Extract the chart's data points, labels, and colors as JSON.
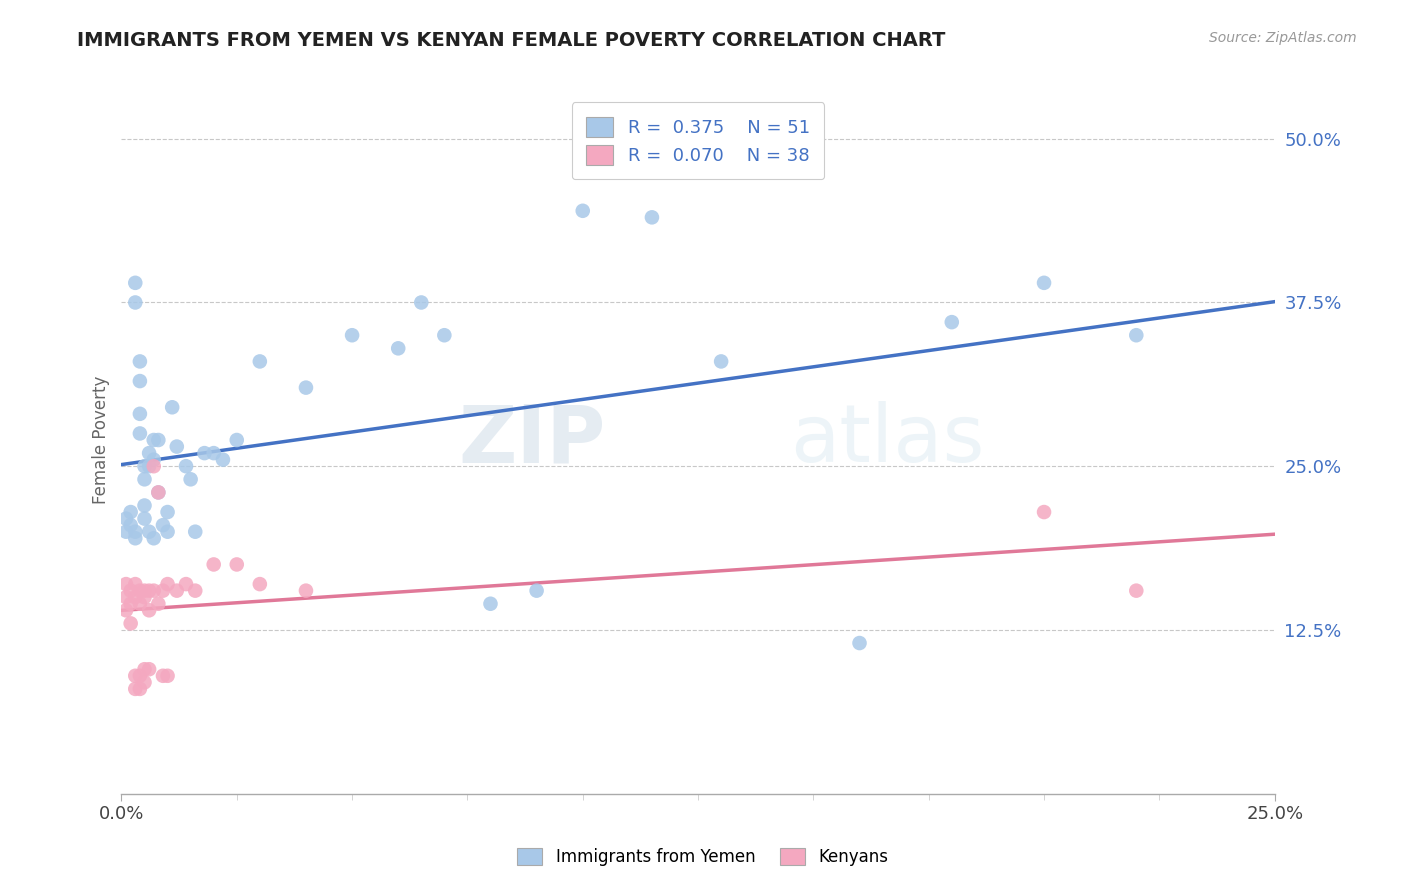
{
  "title": "IMMIGRANTS FROM YEMEN VS KENYAN FEMALE POVERTY CORRELATION CHART",
  "source": "Source: ZipAtlas.com",
  "ylabel": "Female Poverty",
  "xlim": [
    0.0,
    0.25
  ],
  "ylim": [
    0.0,
    0.54
  ],
  "ytick_positions": [
    0.125,
    0.25,
    0.375,
    0.5
  ],
  "ytick_labels": [
    "12.5%",
    "25.0%",
    "37.5%",
    "50.0%"
  ],
  "blue_color": "#a8c8e8",
  "pink_color": "#f4a8c0",
  "blue_line_color": "#4472c4",
  "pink_line_color": "#e07898",
  "watermark_zip": "ZIP",
  "watermark_atlas": "atlas",
  "blue_scatter_x": [
    0.001,
    0.001,
    0.002,
    0.002,
    0.003,
    0.003,
    0.003,
    0.003,
    0.004,
    0.004,
    0.004,
    0.004,
    0.005,
    0.005,
    0.005,
    0.005,
    0.006,
    0.006,
    0.006,
    0.007,
    0.007,
    0.007,
    0.008,
    0.008,
    0.009,
    0.01,
    0.01,
    0.011,
    0.012,
    0.014,
    0.015,
    0.016,
    0.018,
    0.02,
    0.022,
    0.025,
    0.03,
    0.04,
    0.05,
    0.06,
    0.065,
    0.07,
    0.08,
    0.09,
    0.1,
    0.115,
    0.13,
    0.16,
    0.18,
    0.2,
    0.22
  ],
  "blue_scatter_y": [
    0.21,
    0.2,
    0.215,
    0.205,
    0.195,
    0.2,
    0.39,
    0.375,
    0.33,
    0.315,
    0.275,
    0.29,
    0.25,
    0.24,
    0.22,
    0.21,
    0.26,
    0.25,
    0.2,
    0.27,
    0.255,
    0.195,
    0.23,
    0.27,
    0.205,
    0.215,
    0.2,
    0.295,
    0.265,
    0.25,
    0.24,
    0.2,
    0.26,
    0.26,
    0.255,
    0.27,
    0.33,
    0.31,
    0.35,
    0.34,
    0.375,
    0.35,
    0.145,
    0.155,
    0.445,
    0.44,
    0.33,
    0.115,
    0.36,
    0.39,
    0.35
  ],
  "pink_scatter_x": [
    0.001,
    0.001,
    0.001,
    0.002,
    0.002,
    0.002,
    0.003,
    0.003,
    0.003,
    0.003,
    0.004,
    0.004,
    0.004,
    0.004,
    0.005,
    0.005,
    0.005,
    0.005,
    0.006,
    0.006,
    0.006,
    0.007,
    0.007,
    0.008,
    0.008,
    0.009,
    0.009,
    0.01,
    0.01,
    0.012,
    0.014,
    0.016,
    0.02,
    0.025,
    0.03,
    0.04,
    0.2,
    0.22
  ],
  "pink_scatter_y": [
    0.16,
    0.15,
    0.14,
    0.155,
    0.145,
    0.13,
    0.16,
    0.15,
    0.09,
    0.08,
    0.155,
    0.145,
    0.09,
    0.08,
    0.155,
    0.15,
    0.095,
    0.085,
    0.155,
    0.14,
    0.095,
    0.25,
    0.155,
    0.23,
    0.145,
    0.155,
    0.09,
    0.16,
    0.09,
    0.155,
    0.16,
    0.155,
    0.175,
    0.175,
    0.16,
    0.155,
    0.215,
    0.155
  ]
}
